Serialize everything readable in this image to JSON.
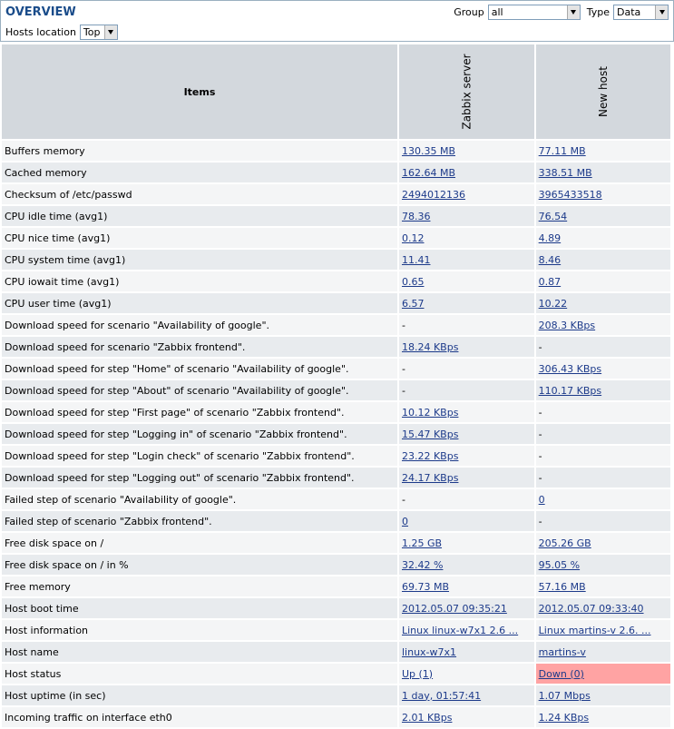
{
  "header": {
    "title": "OVERVIEW",
    "group_label": "Group",
    "group_value": "all",
    "type_label": "Type",
    "type_value": "Data",
    "hosts_location_label": "Hosts location",
    "hosts_location_value": "Top"
  },
  "table": {
    "items_header": "Items",
    "hosts": [
      "Zabbix server",
      "New host"
    ],
    "status_colors": {
      "down": "#ffa3a3"
    },
    "rows": [
      {
        "item": "Buffers memory",
        "v1": "130.35 MB",
        "v2": "77.11 MB"
      },
      {
        "item": "Cached memory",
        "v1": "162.64 MB",
        "v2": "338.51 MB"
      },
      {
        "item": "Checksum of /etc/passwd",
        "v1": "2494012136",
        "v2": "3965433518"
      },
      {
        "item": "CPU idle time (avg1)",
        "v1": "78.36",
        "v2": "76.54"
      },
      {
        "item": "CPU nice time (avg1)",
        "v1": "0.12",
        "v2": "4.89"
      },
      {
        "item": "CPU system time (avg1)",
        "v1": "11.41",
        "v2": "8.46"
      },
      {
        "item": "CPU iowait time (avg1)",
        "v1": "0.65",
        "v2": "0.87"
      },
      {
        "item": "CPU user time (avg1)",
        "v1": "6.57",
        "v2": "10.22"
      },
      {
        "item": "Download speed for scenario \"Availability of google\".",
        "v1": "-",
        "v2": "208.3 KBps"
      },
      {
        "item": "Download speed for scenario \"Zabbix frontend\".",
        "v1": "18.24 KBps",
        "v2": "-"
      },
      {
        "item": "Download speed for step \"Home\" of scenario \"Availability of google\".",
        "v1": "-",
        "v2": "306.43 KBps"
      },
      {
        "item": "Download speed for step \"About\" of scenario \"Availability of google\".",
        "v1": "-",
        "v2": "110.17 KBps"
      },
      {
        "item": "Download speed for step \"First page\" of scenario \"Zabbix frontend\".",
        "v1": "10.12 KBps",
        "v2": "-"
      },
      {
        "item": "Download speed for step \"Logging in\" of scenario \"Zabbix frontend\".",
        "v1": "15.47 KBps",
        "v2": "-"
      },
      {
        "item": "Download speed for step \"Login check\" of scenario \"Zabbix frontend\".",
        "v1": "23.22 KBps",
        "v2": "-"
      },
      {
        "item": "Download speed for step \"Logging out\" of scenario \"Zabbix frontend\".",
        "v1": "24.17 KBps",
        "v2": "-"
      },
      {
        "item": "Failed step of scenario \"Availability of google\".",
        "v1": "-",
        "v2": "0"
      },
      {
        "item": "Failed step of scenario \"Zabbix frontend\".",
        "v1": "0",
        "v2": "-"
      },
      {
        "item": "Free disk space on /",
        "v1": "1.25 GB",
        "v2": "205.26 GB"
      },
      {
        "item": "Free disk space on / in %",
        "v1": "32.42 %",
        "v2": "95.05 %"
      },
      {
        "item": "Free memory",
        "v1": "69.73 MB",
        "v2": "57.16 MB"
      },
      {
        "item": "Host boot time",
        "v1": "2012.05.07 09:35:21",
        "v2": "2012.05.07 09:33:40"
      },
      {
        "item": "Host information",
        "v1": "Linux linux-w7x1 2.6 ...",
        "v2": "Linux martins-v 2.6. ..."
      },
      {
        "item": "Host name",
        "v1": "linux-w7x1",
        "v2": "martins-v"
      },
      {
        "item": "Host status",
        "v1": "Up (1)",
        "v2": "Down (0)",
        "v2_status": "down"
      },
      {
        "item": "Host uptime (in sec)",
        "v1": "1 day, 01:57:41",
        "v2": "1.07 Mbps"
      },
      {
        "item": "Incoming traffic on interface eth0",
        "v1": "2.01 KBps",
        "v2": "1.24 KBps"
      }
    ]
  }
}
